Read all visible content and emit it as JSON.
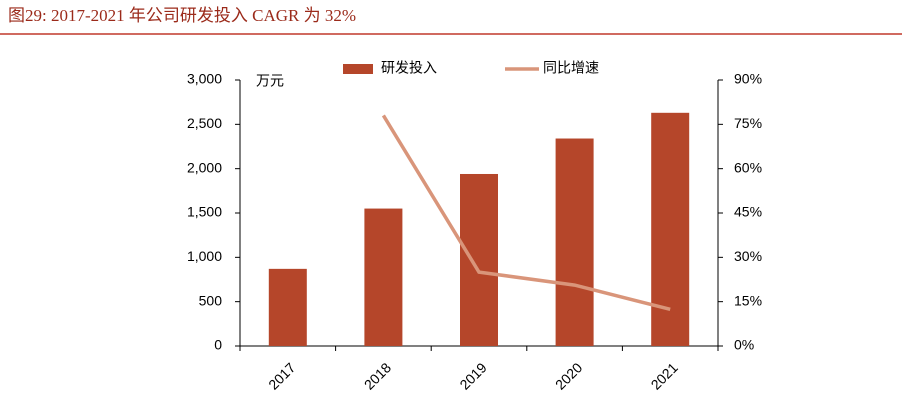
{
  "chart_data": {
    "type": "bar_line",
    "title": "图29:   2017-2021 年公司研发投入 CAGR 为 32%",
    "y_axis_label": "万元",
    "categories": [
      "2017",
      "2018",
      "2019",
      "2020",
      "2021"
    ],
    "series": [
      {
        "name": "研发投入",
        "type": "bar",
        "color": "#b5462a",
        "values": [
          870,
          1550,
          1940,
          2340,
          2630
        ]
      },
      {
        "name": "同比增速",
        "type": "line",
        "axis": "y2",
        "color": "#d9957a",
        "values": [
          null,
          78,
          25,
          20.6,
          12.4
        ]
      }
    ],
    "ylim": [
      0,
      3000
    ],
    "yticks": [
      0,
      500,
      {
        "value": 1000,
        "label": "1,000"
      },
      {
        "value": 1500,
        "label": "1,500"
      },
      {
        "value": 2000,
        "label": "2,000"
      },
      {
        "value": 2500,
        "label": "2,500"
      },
      {
        "value": 3000,
        "label": "3,000"
      }
    ],
    "y2lim": [
      0,
      90
    ],
    "y2ticks": [
      {
        "value": 0,
        "label": "0%"
      },
      {
        "value": 15,
        "label": "15%"
      },
      {
        "value": 30,
        "label": "30%"
      },
      {
        "value": 45,
        "label": "45%"
      },
      {
        "value": 60,
        "label": "60%"
      },
      {
        "value": 75,
        "label": "75%"
      },
      {
        "value": 90,
        "label": "90%"
      }
    ],
    "grid": false,
    "legend": "top"
  }
}
